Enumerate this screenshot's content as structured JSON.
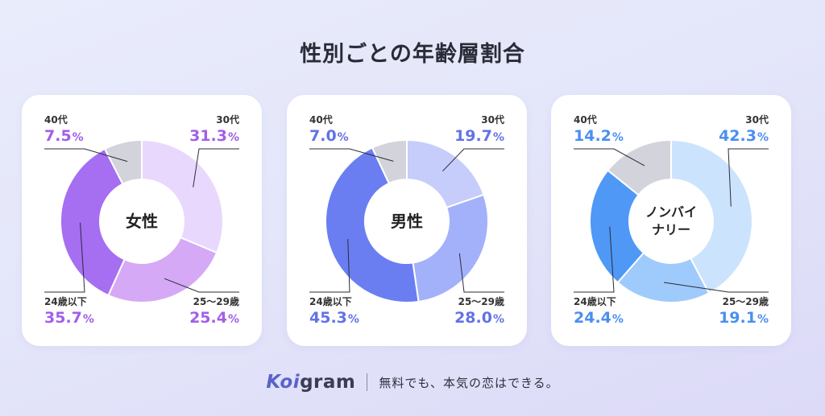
{
  "title": "性別ごとの年齢層割合",
  "footer": {
    "brand_prefix": "Koi",
    "brand_suffix": "gram",
    "tagline": "無料でも、本気の恋はできる。"
  },
  "chart_data": [
    {
      "type": "donut",
      "center_label": "女性",
      "segments": [
        {
          "label": "30代",
          "value": 31.3,
          "display": "31.3",
          "color": "#e9d8fd"
        },
        {
          "label": "25〜29歳",
          "value": 25.4,
          "display": "25.4",
          "color": "#d6a9f6"
        },
        {
          "label": "24歳以下",
          "value": 35.7,
          "display": "35.7",
          "color": "#a66ef1"
        },
        {
          "label": "40代",
          "value": 7.5,
          "display": "7.5",
          "color": "#d3d3dc"
        }
      ],
      "text_color": "#a25ee8",
      "unit": "%"
    },
    {
      "type": "donut",
      "center_label": "男性",
      "segments": [
        {
          "label": "30代",
          "value": 19.7,
          "display": "19.7",
          "color": "#c6cdfb"
        },
        {
          "label": "25〜29歳",
          "value": 28.0,
          "display": "28.0",
          "color": "#a3b1fb"
        },
        {
          "label": "24歳以下",
          "value": 45.3,
          "display": "45.3",
          "color": "#6a7ef1"
        },
        {
          "label": "40代",
          "value": 7.0,
          "display": "7.0",
          "color": "#d3d3dc"
        }
      ],
      "text_color": "#6272e6",
      "unit": "%"
    },
    {
      "type": "donut",
      "center_label": "ノンバイナリー",
      "center_lines": [
        "ノンバイ",
        "ナリー"
      ],
      "segments": [
        {
          "label": "30代",
          "value": 42.3,
          "display": "42.3",
          "color": "#cce3fd"
        },
        {
          "label": "25〜29歳",
          "value": 19.1,
          "display": "19.1",
          "color": "#9fcafc"
        },
        {
          "label": "24歳以下",
          "value": 24.4,
          "display": "24.4",
          "color": "#4f98f6"
        },
        {
          "label": "40代",
          "value": 14.2,
          "display": "14.2",
          "color": "#d3d3dc"
        }
      ],
      "text_color": "#4a8ff0",
      "unit": "%"
    }
  ]
}
